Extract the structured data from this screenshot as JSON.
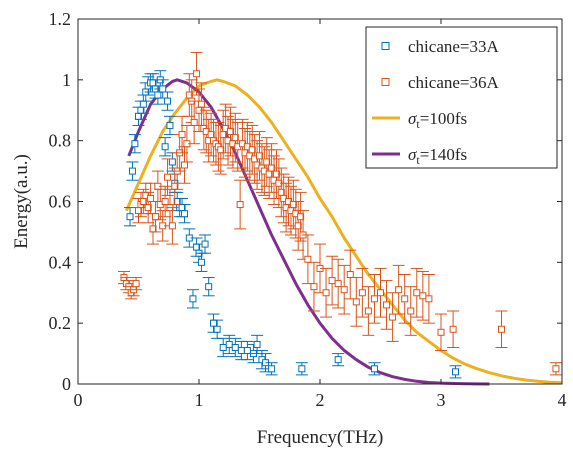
{
  "chart_data": {
    "type": "scatter",
    "xlabel": "Frequency(THz)",
    "ylabel": "Energy(a.u.)",
    "xlim": [
      0,
      4
    ],
    "ylim": [
      0,
      1.2
    ],
    "x_ticks": [
      "0",
      "1",
      "2",
      "3",
      "4"
    ],
    "y_ticks": [
      "0",
      "0.2",
      "0.4",
      "0.6",
      "0.8",
      "1",
      "1.2"
    ],
    "grid": false,
    "legend_position": "top-right",
    "series": [
      {
        "name": "chicane=33A",
        "kind": "marker",
        "color": "#0072BD",
        "points": [
          {
            "x": 0.43,
            "y": 0.55,
            "e": 0.03
          },
          {
            "x": 0.45,
            "y": 0.7,
            "e": 0.03
          },
          {
            "x": 0.47,
            "y": 0.79,
            "e": 0.03
          },
          {
            "x": 0.5,
            "y": 0.88,
            "e": 0.03
          },
          {
            "x": 0.52,
            "y": 0.9,
            "e": 0.03
          },
          {
            "x": 0.54,
            "y": 0.92,
            "e": 0.03
          },
          {
            "x": 0.56,
            "y": 0.96,
            "e": 0.03
          },
          {
            "x": 0.58,
            "y": 0.98,
            "e": 0.03
          },
          {
            "x": 0.6,
            "y": 0.99,
            "e": 0.03
          },
          {
            "x": 0.62,
            "y": 0.99,
            "e": 0.03
          },
          {
            "x": 0.64,
            "y": 0.97,
            "e": 0.03
          },
          {
            "x": 0.66,
            "y": 0.95,
            "e": 0.03
          },
          {
            "x": 0.68,
            "y": 1.0,
            "e": 0.03
          },
          {
            "x": 0.7,
            "y": 0.97,
            "e": 0.03
          },
          {
            "x": 0.72,
            "y": 0.78,
            "e": 0.03
          },
          {
            "x": 0.74,
            "y": 0.93,
            "e": 0.03
          },
          {
            "x": 0.76,
            "y": 0.85,
            "e": 0.03
          },
          {
            "x": 0.78,
            "y": 0.73,
            "e": 0.03
          },
          {
            "x": 0.8,
            "y": 0.66,
            "e": 0.03
          },
          {
            "x": 0.82,
            "y": 0.6,
            "e": 0.03
          },
          {
            "x": 0.84,
            "y": 0.58,
            "e": 0.03
          },
          {
            "x": 0.86,
            "y": 0.58,
            "e": 0.03
          },
          {
            "x": 0.88,
            "y": 0.56,
            "e": 0.03
          },
          {
            "x": 0.92,
            "y": 0.48,
            "e": 0.03
          },
          {
            "x": 0.95,
            "y": 0.28,
            "e": 0.03
          },
          {
            "x": 0.98,
            "y": 0.45,
            "e": 0.03
          },
          {
            "x": 1.0,
            "y": 0.43,
            "e": 0.03
          },
          {
            "x": 1.02,
            "y": 0.4,
            "e": 0.03
          },
          {
            "x": 1.05,
            "y": 0.46,
            "e": 0.03
          },
          {
            "x": 1.08,
            "y": 0.32,
            "e": 0.03
          },
          {
            "x": 1.12,
            "y": 0.2,
            "e": 0.03
          },
          {
            "x": 1.15,
            "y": 0.18,
            "e": 0.03
          },
          {
            "x": 1.2,
            "y": 0.12,
            "e": 0.03
          },
          {
            "x": 1.25,
            "y": 0.13,
            "e": 0.03
          },
          {
            "x": 1.3,
            "y": 0.12,
            "e": 0.03
          },
          {
            "x": 1.35,
            "y": 0.11,
            "e": 0.03
          },
          {
            "x": 1.4,
            "y": 0.11,
            "e": 0.03
          },
          {
            "x": 1.45,
            "y": 0.1,
            "e": 0.03
          },
          {
            "x": 1.48,
            "y": 0.13,
            "e": 0.03
          },
          {
            "x": 1.52,
            "y": 0.08,
            "e": 0.03
          },
          {
            "x": 1.55,
            "y": 0.07,
            "e": 0.03
          },
          {
            "x": 1.6,
            "y": 0.05,
            "e": 0.02
          },
          {
            "x": 1.85,
            "y": 0.05,
            "e": 0.02
          },
          {
            "x": 2.15,
            "y": 0.08,
            "e": 0.02
          },
          {
            "x": 2.45,
            "y": 0.05,
            "e": 0.02
          },
          {
            "x": 3.12,
            "y": 0.04,
            "e": 0.02
          }
        ]
      },
      {
        "name": "chicane=36A",
        "kind": "marker",
        "color": "#D95319",
        "points": [
          {
            "x": 0.38,
            "y": 0.35,
            "e": 0.02
          },
          {
            "x": 0.4,
            "y": 0.33,
            "e": 0.02
          },
          {
            "x": 0.42,
            "y": 0.32,
            "e": 0.02
          },
          {
            "x": 0.44,
            "y": 0.3,
            "e": 0.02
          },
          {
            "x": 0.46,
            "y": 0.31,
            "e": 0.02
          },
          {
            "x": 0.48,
            "y": 0.33,
            "e": 0.02
          },
          {
            "x": 0.5,
            "y": 0.57,
            "e": 0.04
          },
          {
            "x": 0.52,
            "y": 0.59,
            "e": 0.04
          },
          {
            "x": 0.54,
            "y": 0.6,
            "e": 0.04
          },
          {
            "x": 0.56,
            "y": 0.62,
            "e": 0.04
          },
          {
            "x": 0.58,
            "y": 0.58,
            "e": 0.05
          },
          {
            "x": 0.6,
            "y": 0.61,
            "e": 0.05
          },
          {
            "x": 0.62,
            "y": 0.51,
            "e": 0.05
          },
          {
            "x": 0.64,
            "y": 0.55,
            "e": 0.05
          },
          {
            "x": 0.66,
            "y": 0.65,
            "e": 0.05
          },
          {
            "x": 0.68,
            "y": 0.59,
            "e": 0.05
          },
          {
            "x": 0.7,
            "y": 0.52,
            "e": 0.05
          },
          {
            "x": 0.72,
            "y": 0.6,
            "e": 0.05
          },
          {
            "x": 0.74,
            "y": 0.68,
            "e": 0.06
          },
          {
            "x": 0.76,
            "y": 0.58,
            "e": 0.06
          },
          {
            "x": 0.78,
            "y": 0.52,
            "e": 0.06
          },
          {
            "x": 0.8,
            "y": 0.65,
            "e": 0.06
          },
          {
            "x": 0.82,
            "y": 0.7,
            "e": 0.06
          },
          {
            "x": 0.84,
            "y": 0.76,
            "e": 0.06
          },
          {
            "x": 0.86,
            "y": 0.82,
            "e": 0.06
          },
          {
            "x": 0.88,
            "y": 0.72,
            "e": 0.06
          },
          {
            "x": 0.9,
            "y": 0.79,
            "e": 0.06
          },
          {
            "x": 0.92,
            "y": 0.95,
            "e": 0.07
          },
          {
            "x": 0.94,
            "y": 0.93,
            "e": 0.07
          },
          {
            "x": 0.96,
            "y": 0.86,
            "e": 0.07
          },
          {
            "x": 0.98,
            "y": 1.02,
            "e": 0.07
          },
          {
            "x": 1.0,
            "y": 0.9,
            "e": 0.07
          },
          {
            "x": 1.02,
            "y": 0.92,
            "e": 0.07
          },
          {
            "x": 1.04,
            "y": 0.84,
            "e": 0.07
          },
          {
            "x": 1.06,
            "y": 0.83,
            "e": 0.07
          },
          {
            "x": 1.08,
            "y": 0.8,
            "e": 0.07
          },
          {
            "x": 1.1,
            "y": 0.82,
            "e": 0.07
          },
          {
            "x": 1.12,
            "y": 0.8,
            "e": 0.07
          },
          {
            "x": 1.14,
            "y": 0.79,
            "e": 0.07
          },
          {
            "x": 1.16,
            "y": 0.78,
            "e": 0.08
          },
          {
            "x": 1.18,
            "y": 0.77,
            "e": 0.08
          },
          {
            "x": 1.2,
            "y": 0.82,
            "e": 0.08
          },
          {
            "x": 1.22,
            "y": 0.84,
            "e": 0.08
          },
          {
            "x": 1.24,
            "y": 0.8,
            "e": 0.08
          },
          {
            "x": 1.26,
            "y": 0.83,
            "e": 0.08
          },
          {
            "x": 1.28,
            "y": 0.79,
            "e": 0.08
          },
          {
            "x": 1.3,
            "y": 0.81,
            "e": 0.08
          },
          {
            "x": 1.32,
            "y": 0.78,
            "e": 0.08
          },
          {
            "x": 1.34,
            "y": 0.59,
            "e": 0.08
          },
          {
            "x": 1.36,
            "y": 0.79,
            "e": 0.08
          },
          {
            "x": 1.38,
            "y": 0.76,
            "e": 0.08
          },
          {
            "x": 1.4,
            "y": 0.78,
            "e": 0.08
          },
          {
            "x": 1.42,
            "y": 0.75,
            "e": 0.08
          },
          {
            "x": 1.44,
            "y": 0.77,
            "e": 0.08
          },
          {
            "x": 1.46,
            "y": 0.74,
            "e": 0.08
          },
          {
            "x": 1.48,
            "y": 0.72,
            "e": 0.08
          },
          {
            "x": 1.5,
            "y": 0.75,
            "e": 0.08
          },
          {
            "x": 1.52,
            "y": 0.71,
            "e": 0.08
          },
          {
            "x": 1.54,
            "y": 0.7,
            "e": 0.08
          },
          {
            "x": 1.56,
            "y": 0.73,
            "e": 0.08
          },
          {
            "x": 1.58,
            "y": 0.69,
            "e": 0.08
          },
          {
            "x": 1.6,
            "y": 0.71,
            "e": 0.08
          },
          {
            "x": 1.62,
            "y": 0.67,
            "e": 0.08
          },
          {
            "x": 1.64,
            "y": 0.69,
            "e": 0.08
          },
          {
            "x": 1.66,
            "y": 0.66,
            "e": 0.08
          },
          {
            "x": 1.68,
            "y": 0.63,
            "e": 0.08
          },
          {
            "x": 1.7,
            "y": 0.61,
            "e": 0.08
          },
          {
            "x": 1.72,
            "y": 0.58,
            "e": 0.08
          },
          {
            "x": 1.74,
            "y": 0.6,
            "e": 0.08
          },
          {
            "x": 1.76,
            "y": 0.57,
            "e": 0.08
          },
          {
            "x": 1.78,
            "y": 0.59,
            "e": 0.08
          },
          {
            "x": 1.8,
            "y": 0.56,
            "e": 0.08
          },
          {
            "x": 1.82,
            "y": 0.52,
            "e": 0.08
          },
          {
            "x": 1.84,
            "y": 0.55,
            "e": 0.08
          },
          {
            "x": 1.86,
            "y": 0.49,
            "e": 0.08
          },
          {
            "x": 1.9,
            "y": 0.41,
            "e": 0.08
          },
          {
            "x": 1.95,
            "y": 0.32,
            "e": 0.08
          },
          {
            "x": 2.0,
            "y": 0.38,
            "e": 0.08
          },
          {
            "x": 2.05,
            "y": 0.3,
            "e": 0.08
          },
          {
            "x": 2.1,
            "y": 0.34,
            "e": 0.08
          },
          {
            "x": 2.15,
            "y": 0.33,
            "e": 0.08
          },
          {
            "x": 2.2,
            "y": 0.31,
            "e": 0.08
          },
          {
            "x": 2.25,
            "y": 0.36,
            "e": 0.08
          },
          {
            "x": 2.3,
            "y": 0.27,
            "e": 0.08
          },
          {
            "x": 2.35,
            "y": 0.3,
            "e": 0.08
          },
          {
            "x": 2.4,
            "y": 0.24,
            "e": 0.08
          },
          {
            "x": 2.45,
            "y": 0.28,
            "e": 0.08
          },
          {
            "x": 2.5,
            "y": 0.3,
            "e": 0.08
          },
          {
            "x": 2.55,
            "y": 0.26,
            "e": 0.08
          },
          {
            "x": 2.6,
            "y": 0.22,
            "e": 0.08
          },
          {
            "x": 2.65,
            "y": 0.31,
            "e": 0.08
          },
          {
            "x": 2.7,
            "y": 0.28,
            "e": 0.08
          },
          {
            "x": 2.75,
            "y": 0.24,
            "e": 0.08
          },
          {
            "x": 2.8,
            "y": 0.3,
            "e": 0.08
          },
          {
            "x": 2.85,
            "y": 0.29,
            "e": 0.08
          },
          {
            "x": 2.9,
            "y": 0.28,
            "e": 0.08
          },
          {
            "x": 3.0,
            "y": 0.17,
            "e": 0.06
          },
          {
            "x": 3.1,
            "y": 0.18,
            "e": 0.06
          },
          {
            "x": 3.5,
            "y": 0.18,
            "e": 0.06
          },
          {
            "x": 3.95,
            "y": 0.05,
            "e": 0.02
          }
        ]
      },
      {
        "name": "σt=100fs",
        "label_main": "σ",
        "label_sub": "t",
        "label_rest": "=100fs",
        "kind": "curve",
        "color": "#EDB120",
        "points": [
          {
            "x": 0.4,
            "y": 0.57
          },
          {
            "x": 0.5,
            "y": 0.66
          },
          {
            "x": 0.6,
            "y": 0.75
          },
          {
            "x": 0.7,
            "y": 0.83
          },
          {
            "x": 0.8,
            "y": 0.89
          },
          {
            "x": 0.9,
            "y": 0.94
          },
          {
            "x": 1.0,
            "y": 0.98
          },
          {
            "x": 1.1,
            "y": 0.995
          },
          {
            "x": 1.15,
            "y": 1.0
          },
          {
            "x": 1.2,
            "y": 0.995
          },
          {
            "x": 1.3,
            "y": 0.98
          },
          {
            "x": 1.4,
            "y": 0.95
          },
          {
            "x": 1.5,
            "y": 0.91
          },
          {
            "x": 1.6,
            "y": 0.86
          },
          {
            "x": 1.7,
            "y": 0.8
          },
          {
            "x": 1.8,
            "y": 0.74
          },
          {
            "x": 1.9,
            "y": 0.68
          },
          {
            "x": 2.0,
            "y": 0.61
          },
          {
            "x": 2.1,
            "y": 0.55
          },
          {
            "x": 2.2,
            "y": 0.48
          },
          {
            "x": 2.3,
            "y": 0.42
          },
          {
            "x": 2.4,
            "y": 0.36
          },
          {
            "x": 2.5,
            "y": 0.31
          },
          {
            "x": 2.6,
            "y": 0.26
          },
          {
            "x": 2.7,
            "y": 0.21
          },
          {
            "x": 2.8,
            "y": 0.17
          },
          {
            "x": 2.9,
            "y": 0.14
          },
          {
            "x": 3.0,
            "y": 0.11
          },
          {
            "x": 3.1,
            "y": 0.085
          },
          {
            "x": 3.2,
            "y": 0.065
          },
          {
            "x": 3.3,
            "y": 0.05
          },
          {
            "x": 3.4,
            "y": 0.037
          },
          {
            "x": 3.5,
            "y": 0.027
          },
          {
            "x": 3.6,
            "y": 0.019
          },
          {
            "x": 3.7,
            "y": 0.013
          },
          {
            "x": 3.8,
            "y": 0.009
          },
          {
            "x": 3.9,
            "y": 0.006
          },
          {
            "x": 4.0,
            "y": 0.004
          }
        ]
      },
      {
        "name": "σt=140fs",
        "label_main": "σ",
        "label_sub": "t",
        "label_rest": "=140fs",
        "kind": "curve",
        "color": "#7E2F8E",
        "points": [
          {
            "x": 0.42,
            "y": 0.75
          },
          {
            "x": 0.5,
            "y": 0.83
          },
          {
            "x": 0.6,
            "y": 0.92
          },
          {
            "x": 0.7,
            "y": 0.97
          },
          {
            "x": 0.78,
            "y": 0.995
          },
          {
            "x": 0.82,
            "y": 1.0
          },
          {
            "x": 0.9,
            "y": 0.99
          },
          {
            "x": 1.0,
            "y": 0.96
          },
          {
            "x": 1.1,
            "y": 0.91
          },
          {
            "x": 1.2,
            "y": 0.84
          },
          {
            "x": 1.3,
            "y": 0.76
          },
          {
            "x": 1.4,
            "y": 0.67
          },
          {
            "x": 1.5,
            "y": 0.58
          },
          {
            "x": 1.6,
            "y": 0.49
          },
          {
            "x": 1.7,
            "y": 0.41
          },
          {
            "x": 1.8,
            "y": 0.33
          },
          {
            "x": 1.9,
            "y": 0.26
          },
          {
            "x": 2.0,
            "y": 0.2
          },
          {
            "x": 2.1,
            "y": 0.15
          },
          {
            "x": 2.2,
            "y": 0.11
          },
          {
            "x": 2.3,
            "y": 0.08
          },
          {
            "x": 2.4,
            "y": 0.055
          },
          {
            "x": 2.5,
            "y": 0.037
          },
          {
            "x": 2.6,
            "y": 0.024
          },
          {
            "x": 2.7,
            "y": 0.015
          },
          {
            "x": 2.8,
            "y": 0.009
          },
          {
            "x": 2.9,
            "y": 0.005
          },
          {
            "x": 3.0,
            "y": 0.003
          },
          {
            "x": 3.2,
            "y": 0.001
          },
          {
            "x": 3.4,
            "y": 0.0
          }
        ]
      }
    ]
  }
}
